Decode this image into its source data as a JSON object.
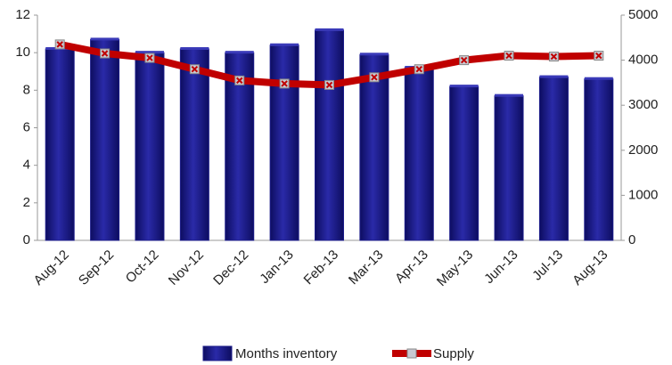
{
  "chart_data": {
    "type": "bar",
    "categories": [
      "Aug-12",
      "Sep-12",
      "Oct-12",
      "Nov-12",
      "Dec-12",
      "Jan-13",
      "Feb-13",
      "Mar-13",
      "Apr-13",
      "May-13",
      "Jun-13",
      "Jul-13",
      "Aug-13"
    ],
    "series": [
      {
        "name": "Months inventory",
        "color": "#1c1c8a",
        "type": "bar",
        "values": [
          10.2,
          10.7,
          10.0,
          10.2,
          10.0,
          10.4,
          11.2,
          9.9,
          9.2,
          8.2,
          7.7,
          8.7,
          8.6
        ]
      },
      {
        "name": "Supply",
        "color": "#c00000",
        "type": "line",
        "axis": "y2",
        "values": [
          4350,
          4150,
          4050,
          3800,
          3550,
          3480,
          3450,
          3620,
          3800,
          4000,
          4100,
          4080,
          4100
        ]
      }
    ],
    "ylim": [
      0,
      12
    ],
    "yticks": [
      0,
      2,
      4,
      6,
      8,
      10,
      12
    ],
    "y2lim": [
      0,
      5000
    ],
    "y2ticks": [
      0,
      1000,
      2000,
      3000,
      4000,
      5000
    ],
    "grid": false
  }
}
